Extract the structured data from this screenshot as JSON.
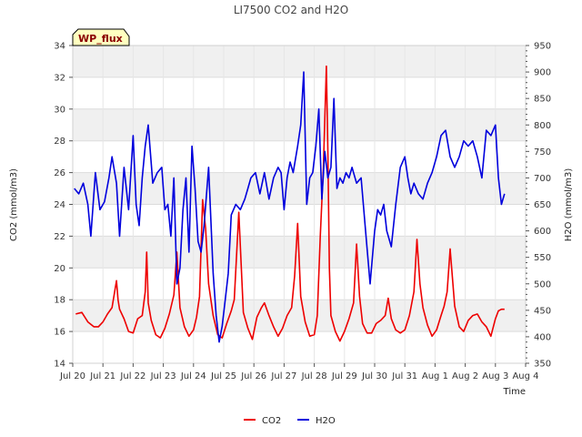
{
  "chart_data": {
    "type": "line",
    "title": "LI7500 CO2 and H2O",
    "badge": "WP_flux",
    "xlabel": "Time",
    "ylabel_left": "CO2 (mmol/m3)",
    "ylabel_right": "H2O (mmol/m3)",
    "ylim_left": [
      14,
      34
    ],
    "ylim_right": [
      350,
      950
    ],
    "yticks_left": [
      14,
      16,
      18,
      20,
      22,
      24,
      26,
      28,
      30,
      32,
      34
    ],
    "yticks_right": [
      350,
      400,
      450,
      500,
      550,
      600,
      650,
      700,
      750,
      800,
      850,
      900,
      950
    ],
    "xlim": [
      0,
      15
    ],
    "xticks": [
      {
        "x": 0,
        "label": "Jul 20"
      },
      {
        "x": 1,
        "label": "Jul 21"
      },
      {
        "x": 2,
        "label": "Jul 22"
      },
      {
        "x": 3,
        "label": "Jul 23"
      },
      {
        "x": 4,
        "label": "Jul 24"
      },
      {
        "x": 5,
        "label": "Jul 25"
      },
      {
        "x": 6,
        "label": "Jul 26"
      },
      {
        "x": 7,
        "label": "Jul 27"
      },
      {
        "x": 8,
        "label": "Jul 28"
      },
      {
        "x": 9,
        "label": "Jul 29"
      },
      {
        "x": 10,
        "label": "Jul 30"
      },
      {
        "x": 11,
        "label": "Jul 31"
      },
      {
        "x": 12,
        "label": "Aug 1"
      },
      {
        "x": 13,
        "label": "Aug 2"
      },
      {
        "x": 14,
        "label": "Aug 3"
      },
      {
        "x": 15,
        "label": "Aug 4"
      }
    ],
    "grid": true,
    "legend": "bottom-center",
    "series": [
      {
        "name": "CO2",
        "axis": "left",
        "color": "#ee0000",
        "x": [
          0.1,
          0.3,
          0.5,
          0.7,
          0.85,
          1.0,
          1.15,
          1.3,
          1.45,
          1.5,
          1.55,
          1.7,
          1.85,
          2.0,
          2.15,
          2.3,
          2.4,
          2.45,
          2.5,
          2.6,
          2.75,
          2.9,
          3.05,
          3.2,
          3.35,
          3.45,
          3.55,
          3.7,
          3.85,
          4.0,
          4.1,
          4.2,
          4.3,
          4.4,
          4.5,
          4.65,
          4.8,
          4.95,
          5.1,
          5.25,
          5.35,
          5.5,
          5.65,
          5.8,
          5.95,
          6.1,
          6.25,
          6.35,
          6.5,
          6.65,
          6.8,
          6.95,
          7.1,
          7.25,
          7.35,
          7.45,
          7.55,
          7.7,
          7.85,
          8.0,
          8.1,
          8.2,
          8.3,
          8.4,
          8.45,
          8.5,
          8.55,
          8.7,
          8.85,
          9.0,
          9.15,
          9.3,
          9.4,
          9.5,
          9.6,
          9.75,
          9.9,
          10.05,
          10.2,
          10.35,
          10.45,
          10.55,
          10.7,
          10.85,
          11.0,
          11.15,
          11.3,
          11.4,
          11.5,
          11.6,
          11.75,
          11.9,
          12.05,
          12.2,
          12.3,
          12.4,
          12.5,
          12.65,
          12.8,
          12.95,
          13.1,
          13.25,
          13.4,
          13.55,
          13.7,
          13.85,
          14.0,
          14.1,
          14.2,
          14.3
        ],
        "values": [
          17.1,
          17.2,
          16.6,
          16.3,
          16.3,
          16.6,
          17.1,
          17.5,
          19.2,
          18.0,
          17.4,
          16.8,
          16.0,
          15.9,
          16.8,
          17.0,
          18.5,
          21.0,
          17.8,
          16.7,
          15.8,
          15.6,
          16.2,
          17.1,
          18.3,
          21.0,
          17.5,
          16.3,
          15.7,
          16.1,
          16.9,
          18.2,
          24.3,
          22.5,
          19.0,
          17.0,
          15.8,
          15.6,
          16.5,
          17.3,
          18.0,
          23.5,
          17.2,
          16.2,
          15.5,
          16.9,
          17.5,
          17.8,
          17.0,
          16.3,
          15.7,
          16.2,
          17.0,
          17.5,
          19.5,
          22.8,
          18.2,
          16.6,
          15.7,
          15.8,
          17.0,
          22.0,
          26.3,
          32.7,
          27.5,
          20.0,
          17.0,
          16.0,
          15.4,
          16.0,
          16.8,
          17.8,
          21.5,
          18.2,
          16.5,
          15.9,
          15.9,
          16.5,
          16.7,
          17.0,
          18.1,
          16.8,
          16.1,
          15.9,
          16.1,
          17.0,
          18.5,
          21.8,
          19.0,
          17.5,
          16.4,
          15.7,
          16.1,
          17.0,
          17.6,
          18.5,
          21.2,
          17.6,
          16.3,
          16.0,
          16.7,
          17.0,
          17.1,
          16.6,
          16.3,
          15.7,
          16.8,
          17.3,
          17.4,
          17.4
        ]
      },
      {
        "name": "H2O",
        "axis": "right",
        "color": "#0000dd",
        "x": [
          0.05,
          0.2,
          0.35,
          0.5,
          0.6,
          0.75,
          0.9,
          1.05,
          1.2,
          1.3,
          1.45,
          1.55,
          1.7,
          1.85,
          2.0,
          2.1,
          2.2,
          2.3,
          2.4,
          2.5,
          2.65,
          2.8,
          2.95,
          3.05,
          3.15,
          3.25,
          3.35,
          3.45,
          3.55,
          3.65,
          3.75,
          3.85,
          3.95,
          4.05,
          4.15,
          4.25,
          4.35,
          4.5,
          4.65,
          4.75,
          4.85,
          4.95,
          5.05,
          5.15,
          5.25,
          5.4,
          5.55,
          5.7,
          5.8,
          5.9,
          6.05,
          6.2,
          6.35,
          6.5,
          6.65,
          6.8,
          6.9,
          7.0,
          7.1,
          7.2,
          7.3,
          7.45,
          7.55,
          7.65,
          7.75,
          7.85,
          7.95,
          8.05,
          8.15,
          8.25,
          8.35,
          8.45,
          8.55,
          8.65,
          8.75,
          8.85,
          8.95,
          9.05,
          9.15,
          9.25,
          9.4,
          9.55,
          9.7,
          9.85,
          10.0,
          10.1,
          10.2,
          10.3,
          10.4,
          10.55,
          10.7,
          10.85,
          11.0,
          11.1,
          11.2,
          11.3,
          11.45,
          11.6,
          11.75,
          11.9,
          12.05,
          12.2,
          12.35,
          12.5,
          12.65,
          12.8,
          12.95,
          13.1,
          13.25,
          13.4,
          13.55,
          13.7,
          13.85,
          14.0,
          14.1,
          14.2,
          14.3
        ],
        "values": [
          680,
          670,
          690,
          650,
          590,
          710,
          640,
          655,
          700,
          740,
          690,
          590,
          720,
          640,
          780,
          650,
          610,
          700,
          760,
          800,
          690,
          710,
          720,
          640,
          650,
          590,
          700,
          500,
          530,
          640,
          700,
          560,
          760,
          680,
          580,
          560,
          610,
          720,
          520,
          440,
          390,
          420,
          470,
          520,
          630,
          650,
          640,
          660,
          680,
          700,
          710,
          670,
          710,
          660,
          700,
          720,
          710,
          640,
          700,
          730,
          710,
          760,
          800,
          900,
          650,
          700,
          710,
          760,
          830,
          660,
          750,
          700,
          720,
          850,
          680,
          700,
          690,
          710,
          700,
          720,
          690,
          700,
          600,
          500,
          600,
          640,
          630,
          650,
          600,
          570,
          650,
          720,
          740,
          700,
          670,
          690,
          670,
          660,
          690,
          710,
          740,
          780,
          790,
          740,
          720,
          740,
          770,
          760,
          770,
          740,
          700,
          790,
          780,
          800,
          700,
          650,
          670
        ]
      }
    ]
  }
}
